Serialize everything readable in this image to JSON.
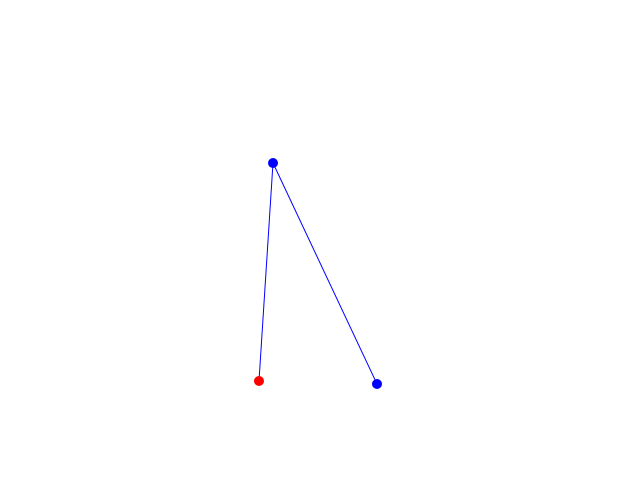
{
  "colors": {
    "background": "#ffffff",
    "line": "#0000ff",
    "start_point": "#ff0000",
    "point": "#0000ff"
  },
  "nodes": [
    {
      "id": "start",
      "color": "#ff0000"
    },
    {
      "id": "apex",
      "color": "#0000ff"
    },
    {
      "id": "end",
      "color": "#0000ff"
    }
  ],
  "edges": [
    {
      "from": "start",
      "to": "apex"
    },
    {
      "from": "apex",
      "to": "end"
    }
  ]
}
